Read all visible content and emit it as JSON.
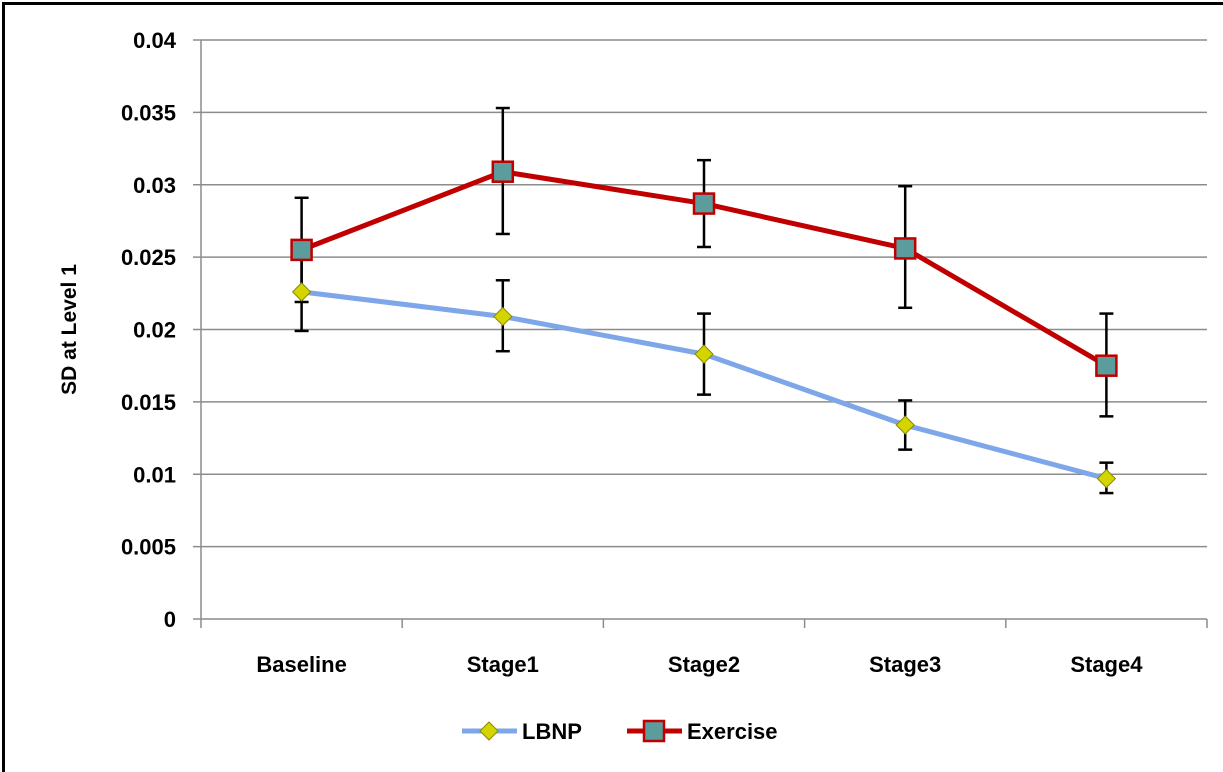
{
  "chart_data": {
    "type": "line",
    "title": "",
    "xlabel": "",
    "ylabel": "SD at Level 1",
    "categories": [
      "Baseline",
      "Stage1",
      "Stage2",
      "Stage3",
      "Stage4"
    ],
    "ylim": [
      0,
      0.04
    ],
    "yticks": [
      0,
      0.005,
      0.01,
      0.015,
      0.02,
      0.025,
      0.03,
      0.035,
      0.04
    ],
    "ytick_labels": [
      "0",
      "0.005",
      "0.01",
      "0.015",
      "0.02",
      "0.025",
      "0.03",
      "0.035",
      "0.04"
    ],
    "grid": "horizontal",
    "legend_position": "bottom",
    "series": [
      {
        "name": "LBNP",
        "color": "#7DA7E8",
        "marker": "diamond",
        "marker_color": "#D4D400",
        "values": [
          0.0226,
          0.0209,
          0.0183,
          0.0134,
          0.0097
        ],
        "error_low": [
          0.0199,
          0.0185,
          0.0155,
          0.0117,
          0.0087
        ],
        "error_high": [
          0.0254,
          0.0234,
          0.0211,
          0.0151,
          0.0108
        ]
      },
      {
        "name": "Exercise",
        "color": "#C00000",
        "marker": "square",
        "marker_color": "#5B9C9C",
        "values": [
          0.0255,
          0.0309,
          0.0287,
          0.0256,
          0.0175
        ],
        "error_low": [
          0.0219,
          0.0266,
          0.0257,
          0.0215,
          0.014
        ],
        "error_high": [
          0.0291,
          0.0353,
          0.0317,
          0.0299,
          0.0211
        ]
      }
    ]
  }
}
